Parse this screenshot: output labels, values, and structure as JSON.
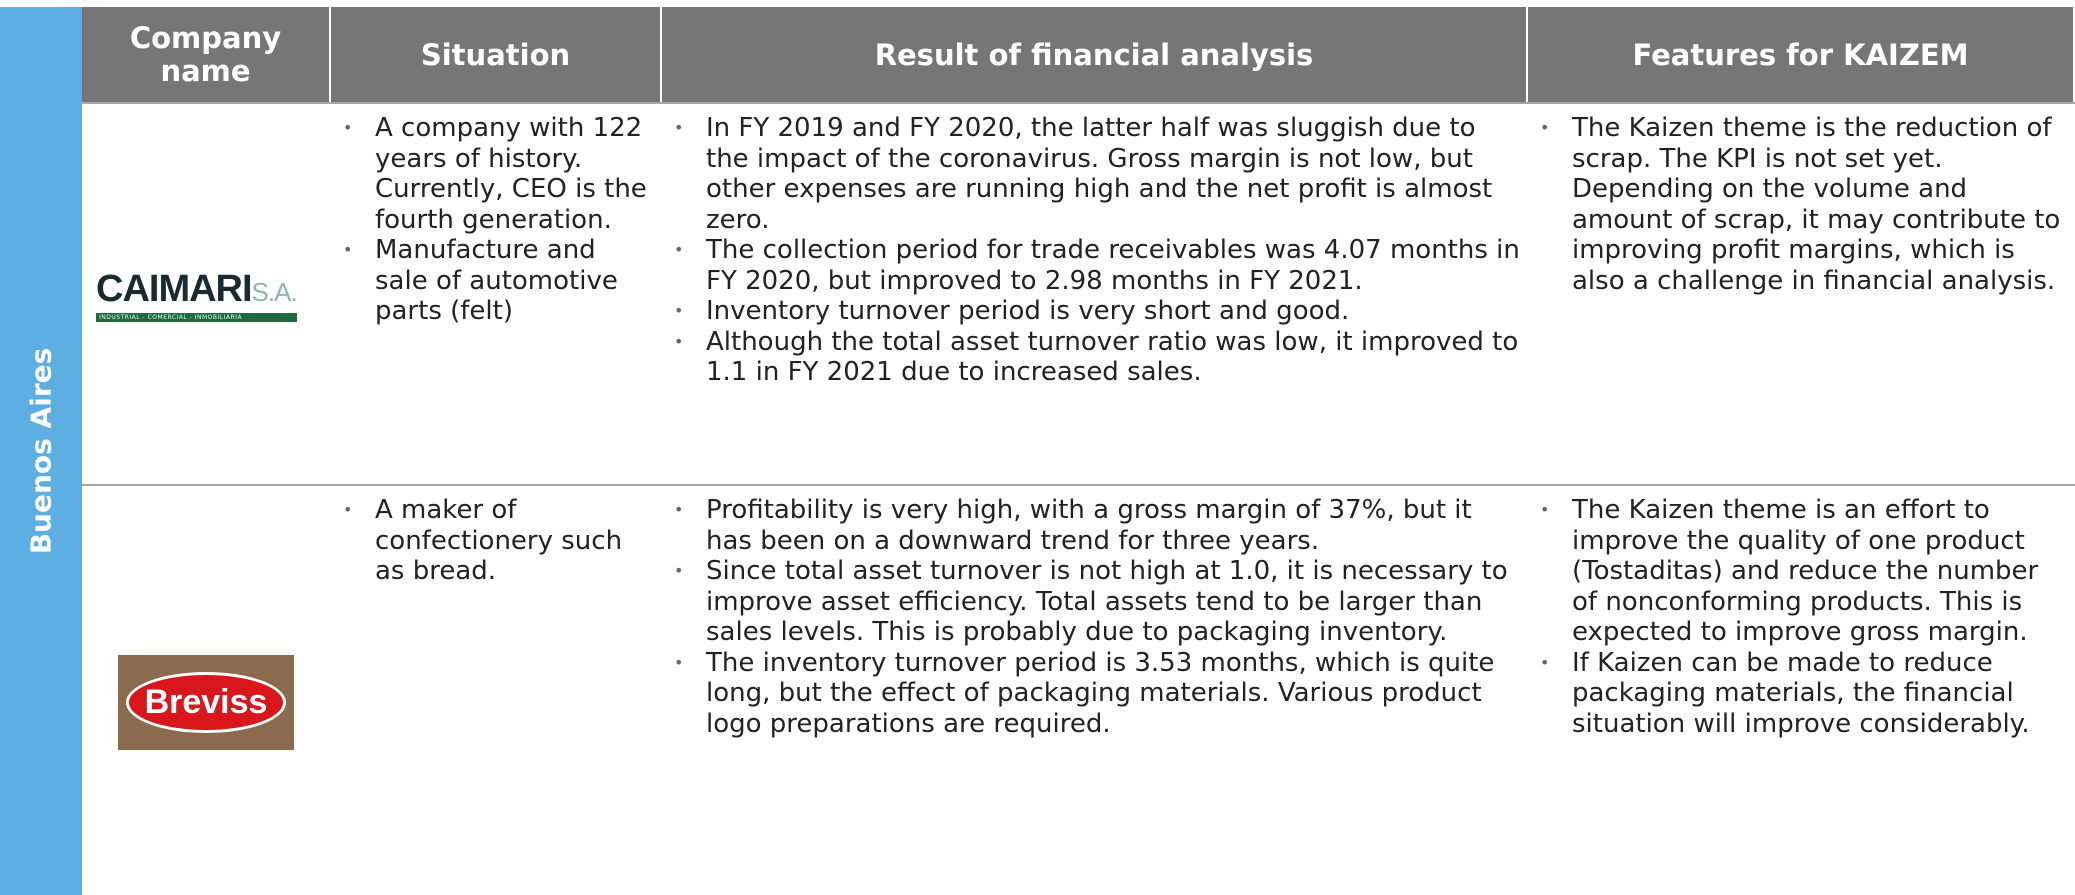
{
  "side_label": "Buenos Aires",
  "header": {
    "columns": [
      "Company name",
      "Situation",
      "Result of financial analysis",
      "Features for KAIZEM"
    ]
  },
  "rows": [
    {
      "logo": {
        "name": "CAIMARI",
        "suffix": "S.A.",
        "tagline": "INDUSTRIAL - COMERCIAL - INMOBILIARIA"
      },
      "situation": [
        "A company with 122 years of history. Currently, CEO is the fourth generation.",
        "Manufacture and sale of automotive parts (felt)"
      ],
      "result": [
        "In FY 2019 and FY 2020, the latter half was sluggish due to the impact of the coronavirus. Gross margin is not low, but other expenses are running high and the net profit is almost zero.",
        "The collection period for trade receivables was 4.07 months in FY 2020, but improved to 2.98 months in FY 2021.",
        "Inventory turnover period is very short and good.",
        "Although the total asset turnover ratio was low, it improved to 1.1 in FY 2021 due to increased sales."
      ],
      "features": [
        "The Kaizen theme is the reduction of scrap. The KPI is not set yet. Depending on the volume and amount of scrap, it may contribute to improving profit margins, which is also a challenge in financial analysis."
      ]
    },
    {
      "logo": {
        "name": "Breviss"
      },
      "situation": [
        "A maker of confectionery such as bread."
      ],
      "result": [
        "Profitability is very high, with a gross margin of 37%, but it has been on a downward trend for three years.",
        "Since total asset turnover is not high at 1.0, it is necessary to improve asset efficiency. Total assets tend to be larger than sales levels. This is probably due to packaging inventory.",
        "The inventory turnover period is 3.53 months, which is quite long, but the effect of packaging materials. Various product logo preparations are required."
      ],
      "features": [
        "The Kaizen theme is an effort to improve the quality of one product (Tostaditas) and reduce the number of nonconforming products. This is expected to improve gross margin.",
        "If Kaizen can be made to reduce packaging materials, the financial situation will improve considerably."
      ]
    }
  ]
}
